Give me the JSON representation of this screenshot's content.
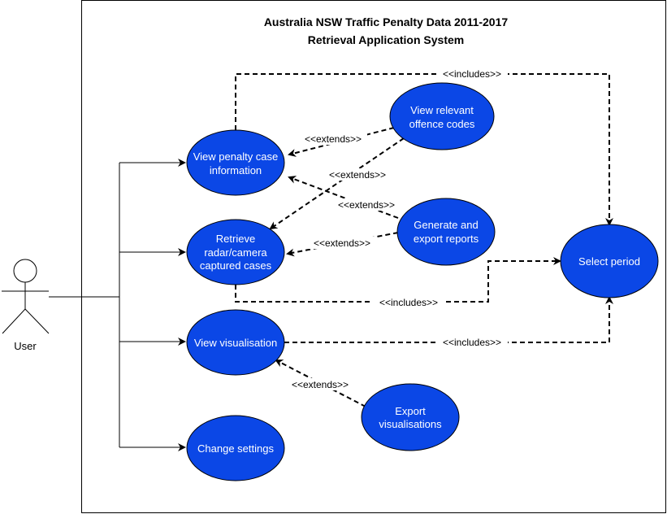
{
  "system": {
    "title_line1": "Australia NSW Traffic Penalty Data 2011-2017",
    "title_line2": "Retrieval Application System"
  },
  "actor": {
    "label": "User"
  },
  "use_cases": {
    "view_penalty": {
      "line1": "View penalty case",
      "line2": "information"
    },
    "view_offence": {
      "line1": "View relevant",
      "line2": "offence codes"
    },
    "retrieve_cases": {
      "line1": "Retrieve",
      "line2": "radar/camera",
      "line3": "captured cases"
    },
    "generate_reports": {
      "line1": "Generate and",
      "line2": "export reports"
    },
    "select_period": {
      "label": "Select period"
    },
    "view_visualisation": {
      "label": "View visualisation"
    },
    "export_visualisations": {
      "line1": "Export",
      "line2": "visualisations"
    },
    "change_settings": {
      "label": "Change settings"
    }
  },
  "relations": {
    "includes_top": "<<includes>>",
    "extends_offence_penalty": "<<extends>>",
    "extends_offence_retrieve": "<<extends>>",
    "extends_reports_penalty": "<<extends>>",
    "extends_reports_retrieve": "<<extends>>",
    "includes_retrieve": "<<includes>>",
    "includes_visualisation": "<<includes>>",
    "extends_export_visualisation": "<<extends>>"
  },
  "colors": {
    "use_case_fill": "#0b47e6",
    "use_case_text": "#ffffff",
    "line": "#000000"
  }
}
